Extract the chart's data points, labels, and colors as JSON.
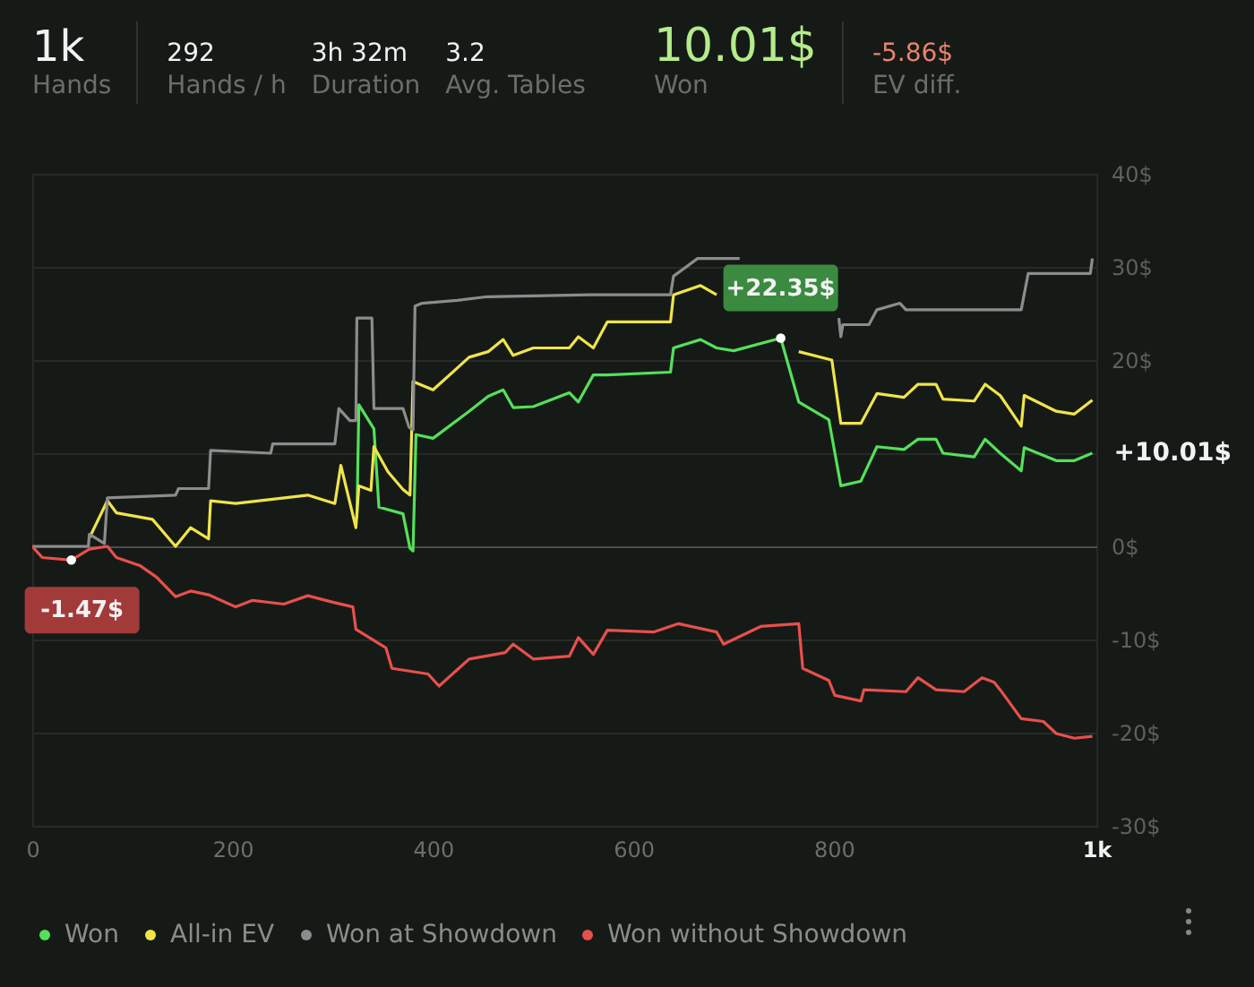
{
  "chart_data": {
    "type": "line",
    "annotations": [
      "1k",
      "Hands",
      "292",
      "Hands / h",
      "3h 32m",
      "Duration",
      "3.2",
      "Avg. Tables",
      "10.01$",
      "Won",
      "-5.86$",
      "EV diff.",
      {
        "text": "-1.47$",
        "x": 39,
        "y": -1.47
      },
      {
        "text": "+22.35$",
        "x": 747,
        "y": 22.35
      },
      {
        "text": "+10.01$",
        "x": 1058,
        "y": 10.01
      }
    ],
    "xlim": [
      0,
      1062
    ],
    "xticks": [
      0,
      200,
      400,
      600,
      800,
      {
        "value": 1062,
        "label": "1k"
      }
    ],
    "ylim": [
      -30,
      40
    ],
    "yticks": [
      {
        "value": -30,
        "label": "-30$"
      },
      {
        "value": -20,
        "label": "-20$"
      },
      {
        "value": -10,
        "label": "-10$"
      },
      {
        "value": 0,
        "label": "0$"
      },
      {
        "value": 10,
        "label": null
      },
      {
        "value": 20,
        "label": "20$"
      },
      {
        "value": 30,
        "label": "30$"
      },
      {
        "value": 40,
        "label": "40$"
      }
    ],
    "grid": "y",
    "legend": "bottom",
    "series": [
      {
        "name": "Won",
        "color": "#55e05a",
        "x": [
          324,
          326,
          341,
          346,
          370,
          377,
          380,
          383,
          400,
          436,
          455,
          470,
          480,
          500,
          536,
          545,
          560,
          574,
          637,
          640,
          667,
          683,
          700,
          747,
          765,
          795,
          807,
          827,
          843,
          870,
          884,
          902,
          909,
          940,
          951,
          966,
          987,
          990,
          1022,
          1040,
          1058
        ],
        "values": [
          3.0,
          15.2,
          12.6,
          4.2,
          3.5,
          -0.2,
          -0.5,
          12.0,
          11.6,
          14.5,
          16.1,
          16.8,
          14.9,
          15.0,
          16.5,
          15.5,
          18.4,
          18.4,
          18.7,
          21.3,
          22.2,
          21.3,
          21.0,
          22.35,
          15.5,
          13.6,
          6.5,
          7.0,
          10.7,
          10.4,
          11.5,
          11.5,
          10.0,
          9.6,
          11.5,
          10.0,
          8.1,
          10.6,
          9.2,
          9.2,
          10.01
        ]
      },
      {
        "name": "All-in EV",
        "color": "#f0e44a",
        "x": [
          57,
          75,
          84,
          120,
          143,
          158,
          176,
          178,
          203,
          275,
          302,
          308,
          323,
          326,
          338,
          341,
          355,
          370,
          377,
          380,
          400,
          436,
          455,
          470,
          480,
          500,
          536,
          545,
          560,
          574,
          637,
          640,
          667,
          683,
          730,
          765,
          798,
          807,
          827,
          843,
          870,
          884,
          902,
          909,
          940,
          951,
          966,
          987,
          990,
          1022,
          1040,
          1058
        ],
        "values": [
          0.9,
          4.9,
          3.6,
          2.9,
          0,
          2.0,
          0.8,
          4.9,
          4.6,
          5.5,
          4.6,
          8.7,
          2.0,
          6.5,
          6.0,
          10.7,
          8.0,
          6.1,
          5.5,
          17.7,
          16.8,
          20.3,
          20.9,
          22.2,
          20.5,
          21.3,
          21.3,
          22.5,
          21.3,
          24.1,
          24.1,
          27.0,
          28.0,
          27.0,
          null,
          20.9,
          20.0,
          13.2,
          13.2,
          16.4,
          16.0,
          17.4,
          17.4,
          15.8,
          15.6,
          17.4,
          16.2,
          12.9,
          16.2,
          14.5,
          14.2,
          15.7
        ]
      },
      {
        "name": "Won at Showdown",
        "color": "#8c8c8c",
        "x": [
          0,
          56,
          57,
          72,
          75,
          143,
          146,
          176,
          178,
          238,
          240,
          302,
          306,
          317,
          323,
          324,
          339,
          341,
          370,
          376,
          380,
          382,
          389,
          424,
          454,
          556,
          637,
          640,
          664,
          706,
          730,
          805,
          807,
          809,
          835,
          843,
          866,
          872,
          987,
          994,
          1056,
          1058
        ],
        "values": [
          0,
          0,
          1.3,
          0.3,
          5.2,
          5.5,
          6.2,
          6.2,
          10.3,
          10.0,
          11.0,
          11.0,
          14.8,
          13.5,
          13.5,
          24.5,
          24.5,
          14.8,
          14.8,
          12.8,
          12.5,
          25.8,
          26.1,
          26.4,
          26.8,
          27.0,
          27.0,
          29.0,
          30.9,
          30.9,
          null,
          24.5,
          22.5,
          23.8,
          23.8,
          25.4,
          26.1,
          25.4,
          25.4,
          29.3,
          29.3,
          30.9
        ]
      },
      {
        "name": "Won without Showdown",
        "color": "#e8504c",
        "x": [
          0,
          10,
          39,
          57,
          75,
          84,
          108,
          124,
          143,
          158,
          176,
          203,
          220,
          251,
          275,
          300,
          320,
          323,
          353,
          359,
          395,
          406,
          436,
          472,
          480,
          500,
          536,
          545,
          560,
          574,
          620,
          645,
          683,
          690,
          727,
          765,
          769,
          795,
          801,
          827,
          830,
          872,
          884,
          902,
          930,
          948,
          960,
          966,
          987,
          1009,
          1022,
          1040,
          1058
        ],
        "values": [
          0,
          -1.2,
          -1.47,
          -0.3,
          0,
          -1.2,
          -2.1,
          -3.3,
          -5.4,
          -4.8,
          -5.2,
          -6.5,
          -5.8,
          -6.2,
          -5.3,
          -6.0,
          -6.5,
          -8.9,
          -10.9,
          -13.1,
          -13.7,
          -15.0,
          -12.1,
          -11.4,
          -10.5,
          -12.1,
          -11.8,
          -9.8,
          -11.6,
          -9.0,
          -9.2,
          -8.3,
          -9.2,
          -10.5,
          -8.6,
          -8.3,
          -13.1,
          -14.4,
          -16.0,
          -16.6,
          -15.4,
          -15.6,
          -14.1,
          -15.4,
          -15.6,
          -14.1,
          -14.6,
          -15.4,
          -18.5,
          -18.8,
          -20.1,
          -20.6,
          -20.4
        ]
      }
    ]
  }
}
